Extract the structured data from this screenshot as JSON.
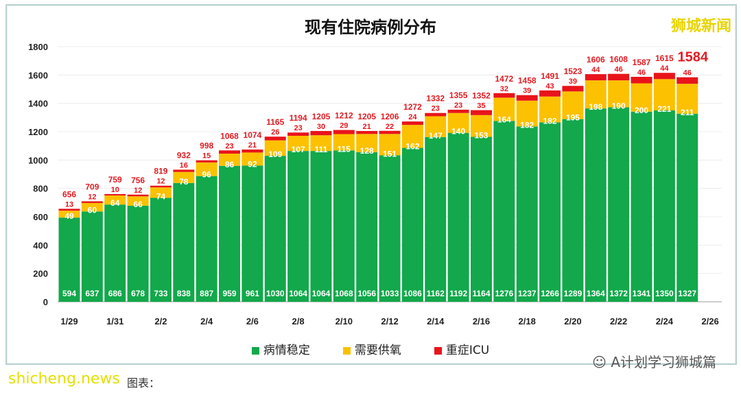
{
  "chart_data": {
    "type": "bar",
    "stacked": true,
    "title": "现有住院病例分布",
    "categories": [
      "1/29",
      "1/30",
      "1/31",
      "2/1",
      "2/2",
      "2/3",
      "2/4",
      "2/5",
      "2/6",
      "2/7",
      "2/8",
      "2/9",
      "2/10",
      "2/11",
      "2/12",
      "2/13",
      "2/14",
      "2/15",
      "2/16",
      "2/17",
      "2/18",
      "2/19",
      "2/20",
      "2/21",
      "2/22",
      "2/23",
      "2/24",
      "2/25"
    ],
    "x_tick_labels": [
      "1/29",
      "1/31",
      "2/2",
      "2/4",
      "2/6",
      "2/8",
      "2/10",
      "2/12",
      "2/14",
      "2/16",
      "2/18",
      "2/20",
      "2/22",
      "2/24",
      "2/26"
    ],
    "series": [
      {
        "name": "病情稳定",
        "color": "#12a84b",
        "values": [
          594,
          637,
          686,
          678,
          733,
          838,
          887,
          959,
          961,
          1030,
          1064,
          1064,
          1068,
          1056,
          1033,
          1086,
          1162,
          1192,
          1164,
          1276,
          1237,
          1266,
          1289,
          1364,
          1372,
          1341,
          1350,
          1327
        ]
      },
      {
        "name": "需要供氧",
        "color": "#fcc100",
        "values": [
          49,
          60,
          64,
          66,
          74,
          78,
          96,
          86,
          92,
          109,
          107,
          111,
          115,
          128,
          151,
          162,
          147,
          140,
          153,
          164,
          182,
          182,
          195,
          198,
          190,
          200,
          221,
          211
        ]
      },
      {
        "name": "重症ICU",
        "color": "#e8141b",
        "values": [
          13,
          12,
          10,
          12,
          12,
          16,
          15,
          23,
          21,
          26,
          23,
          30,
          29,
          21,
          22,
          24,
          23,
          23,
          35,
          32,
          39,
          43,
          39,
          44,
          46,
          46,
          44,
          46
        ]
      }
    ],
    "totals": [
      656,
      709,
      759,
      756,
      819,
      932,
      998,
      1068,
      1074,
      1165,
      1194,
      1205,
      1212,
      1205,
      1206,
      1272,
      1332,
      1355,
      1352,
      1472,
      1458,
      1491,
      1523,
      1606,
      1608,
      1587,
      1615,
      1584
    ],
    "y_ticks": [
      0,
      200,
      400,
      600,
      800,
      1000,
      1200,
      1400,
      1600,
      1800
    ],
    "ylim": [
      0,
      1800
    ],
    "grid": true,
    "legend": "bottom"
  },
  "watermarks": {
    "top_right": "狮城新闻",
    "bottom_right": "A计划学习狮城篇",
    "bottom_left": "shicheng.news"
  },
  "caption": "图表："
}
